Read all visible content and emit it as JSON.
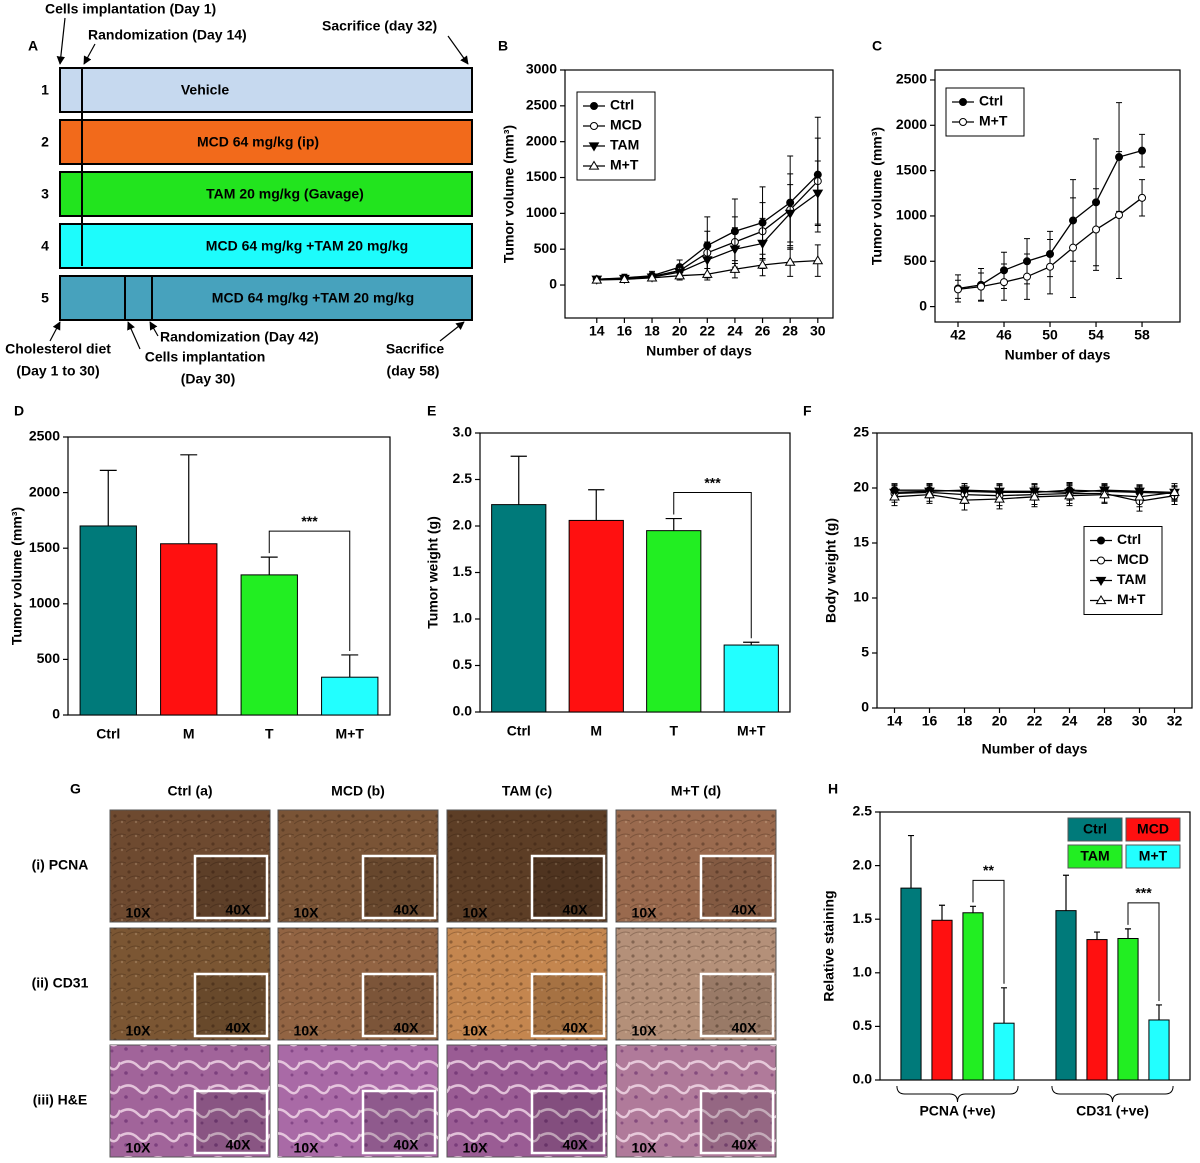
{
  "panel_a": {
    "letter": "A",
    "top_annotations": [
      "Cells implantation (Day 1)",
      "Randomization (Day 14)",
      "Sacrifice (day 32)"
    ],
    "rows": [
      {
        "number": "1",
        "label": "Vehicle",
        "color": "#c6d9ef"
      },
      {
        "number": "2",
        "label": "MCD 64 mg/kg (ip)",
        "color": "#f26a1b"
      },
      {
        "number": "3",
        "label": "TAM 20 mg/kg (Gavage)",
        "color": "#22e41e"
      },
      {
        "number": "4",
        "label": "MCD 64 mg/kg +TAM 20 mg/kg",
        "color": "#1dfcfc"
      },
      {
        "number": "5",
        "label": "MCD 64 mg/kg +TAM 20 mg/kg",
        "color": "#47a2bd"
      }
    ],
    "bottom_annotations": [
      [
        "Cholesterol diet",
        "(Day 1 to 30)"
      ],
      [
        "Randomization (Day 42)"
      ],
      [
        "Cells implantation",
        "(Day 30)"
      ],
      [
        "Sacrifice",
        "(day 58)"
      ]
    ]
  },
  "chart_data": [
    {
      "panel": "B",
      "type": "line",
      "y_label": "Tumor volume (mm³)",
      "x_label": "Number of days",
      "x": [
        14,
        16,
        18,
        20,
        22,
        24,
        26,
        28,
        30
      ],
      "xlim": [
        11.7,
        31.1
      ],
      "xticks": [
        14,
        16,
        18,
        20,
        22,
        24,
        26,
        28,
        30
      ],
      "ylim": [
        -460,
        3000
      ],
      "yticks": [
        0,
        500,
        1000,
        1500,
        2000,
        2500,
        3000
      ],
      "legend": "upper left",
      "series": [
        {
          "name": "Ctrl",
          "marker": "circle",
          "color": "#000000",
          "values": [
            80,
            100,
            130,
            250,
            550,
            750,
            870,
            1150,
            1540
          ],
          "errors": [
            20,
            50,
            60,
            100,
            400,
            450,
            500,
            650,
            800
          ]
        },
        {
          "name": "MCD",
          "marker": "circle",
          "color": "#ffffff",
          "values": [
            80,
            90,
            120,
            200,
            450,
            600,
            750,
            1050,
            1450
          ],
          "errors": [
            20,
            40,
            50,
            80,
            300,
            350,
            400,
            500,
            600
          ]
        },
        {
          "name": "TAM",
          "marker": "triangle-down",
          "color": "#000000",
          "values": [
            80,
            90,
            110,
            180,
            350,
            500,
            580,
            1000,
            1280
          ],
          "errors": [
            20,
            40,
            50,
            80,
            250,
            300,
            350,
            400,
            450
          ]
        },
        {
          "name": "M+T",
          "marker": "triangle-up",
          "color": "#ffffff",
          "values": [
            70,
            80,
            100,
            130,
            150,
            220,
            280,
            320,
            340
          ],
          "errors": [
            20,
            30,
            40,
            60,
            80,
            120,
            150,
            200,
            220
          ]
        }
      ]
    },
    {
      "panel": "C",
      "type": "line",
      "y_label": "Tumor volume (mm³)",
      "x_label": "Number of days",
      "x": [
        42,
        44,
        46,
        48,
        50,
        52,
        54,
        56,
        58
      ],
      "xlim": [
        40,
        61.3
      ],
      "xticks": [
        42,
        46,
        50,
        54,
        58
      ],
      "ylim": [
        -170,
        2610
      ],
      "yticks": [
        0,
        500,
        1000,
        1500,
        2000,
        2500
      ],
      "legend": "upper left",
      "series": [
        {
          "name": "Ctrl",
          "marker": "circle",
          "color": "#000000",
          "values": [
            200,
            240,
            400,
            500,
            580,
            950,
            1150,
            1650,
            1720
          ],
          "errors": [
            150,
            180,
            200,
            250,
            250,
            450,
            700,
            600,
            180
          ]
        },
        {
          "name": "M+T",
          "marker": "circle",
          "color": "#ffffff",
          "values": [
            190,
            220,
            270,
            330,
            440,
            650,
            850,
            1010,
            1200
          ],
          "errors": [
            100,
            150,
            200,
            250,
            300,
            550,
            450,
            700,
            200
          ]
        }
      ]
    },
    {
      "panel": "D",
      "type": "bar",
      "y_label": "Tumor volume (mm³)",
      "categories": [
        "Ctrl",
        "M",
        "T",
        "M+T"
      ],
      "values": [
        1700,
        1540,
        1260,
        340
      ],
      "errors": [
        500,
        800,
        160,
        200
      ],
      "colors": [
        "#007a7a",
        "#ff1010",
        "#22ee22",
        "#22ffff"
      ],
      "ylim": [
        0,
        2500
      ],
      "yticks": [
        0,
        500,
        1000,
        1500,
        2000,
        2500
      ],
      "significance": "***"
    },
    {
      "panel": "E",
      "type": "bar",
      "y_label": "Tumor weight (g)",
      "categories": [
        "Ctrl",
        "M",
        "T",
        "M+T"
      ],
      "values": [
        2.23,
        2.06,
        1.95,
        0.72
      ],
      "errors": [
        0.52,
        0.33,
        0.13,
        0.03
      ],
      "colors": [
        "#007a7a",
        "#ff1010",
        "#22ee22",
        "#22ffff"
      ],
      "ylim": [
        0,
        3
      ],
      "yticks": [
        {
          "value": 0,
          "label": "0.0"
        },
        0.5,
        {
          "value": 1,
          "label": "1.0"
        },
        1.5,
        {
          "value": 2,
          "label": "2.0"
        },
        2.5,
        {
          "value": 3,
          "label": "3.0"
        }
      ],
      "significance": "***"
    },
    {
      "panel": "F",
      "type": "line",
      "y_label": "Body weight (g)",
      "x_label": "Number of days",
      "categories": [
        "14",
        "16",
        "18",
        "20",
        "22",
        "24",
        "28",
        "30",
        "32"
      ],
      "ylim": [
        0,
        25
      ],
      "yticks": [
        0,
        5,
        10,
        15,
        20,
        25
      ],
      "legend": "center right",
      "series": [
        {
          "name": "Ctrl",
          "marker": "circle",
          "color": "#000000",
          "values": [
            19.8,
            19.8,
            19.7,
            19.6,
            19.6,
            19.8,
            19.7,
            19.6,
            19.5
          ],
          "errors": [
            0.6,
            0.6,
            0.7,
            0.7,
            0.7,
            0.7,
            0.6,
            0.6,
            0.6
          ]
        },
        {
          "name": "MCD",
          "marker": "circle",
          "color": "#ffffff",
          "values": [
            19.5,
            19.6,
            19.4,
            19.3,
            19.4,
            19.5,
            19.5,
            18.8,
            19.3
          ],
          "errors": [
            0.8,
            0.8,
            0.8,
            0.9,
            0.9,
            0.9,
            0.8,
            0.9,
            0.8
          ]
        },
        {
          "name": "TAM",
          "marker": "triangle-down",
          "color": "#000000",
          "values": [
            19.6,
            19.7,
            19.8,
            19.7,
            19.7,
            19.6,
            19.8,
            19.7,
            19.6
          ],
          "errors": [
            0.6,
            0.6,
            0.6,
            0.7,
            0.7,
            0.7,
            0.6,
            0.6,
            0.6
          ]
        },
        {
          "name": "M+T",
          "marker": "triangle-up",
          "color": "#ffffff",
          "values": [
            19.2,
            19.4,
            18.9,
            19.0,
            19.2,
            19.3,
            19.4,
            19.2,
            19.6
          ],
          "errors": [
            0.8,
            0.8,
            0.9,
            0.9,
            0.9,
            0.9,
            0.8,
            0.9,
            0.8
          ]
        }
      ]
    },
    {
      "panel": "H",
      "type": "bar",
      "y_label": "Relative staining",
      "categories": [
        "PCNA (+ve)",
        "CD31 (+ve)"
      ],
      "ylim": [
        0,
        2.5
      ],
      "yticks": [
        {
          "value": 0,
          "label": "0.0"
        },
        0.5,
        {
          "value": 1,
          "label": "1.0"
        },
        1.5,
        {
          "value": 2,
          "label": "2.0"
        },
        2.5
      ],
      "legend": "upper right",
      "series": [
        {
          "name": "Ctrl",
          "color": "#007a7a",
          "values": [
            1.79,
            1.58
          ],
          "errors": [
            0.49,
            0.33
          ]
        },
        {
          "name": "MCD",
          "color": "#ff1010",
          "values": [
            1.49,
            1.31
          ],
          "errors": [
            0.14,
            0.07
          ]
        },
        {
          "name": "TAM",
          "color": "#22ee22",
          "values": [
            1.56,
            1.32
          ],
          "errors": [
            0.06,
            0.09
          ]
        },
        {
          "name": "M+T",
          "color": "#22ffff",
          "values": [
            0.53,
            0.56
          ],
          "errors": [
            0.33,
            0.14
          ]
        }
      ],
      "significance": [
        "**",
        "***"
      ]
    }
  ],
  "panel_g": {
    "letter": "G",
    "columns": [
      "Ctrl (a)",
      "MCD (b)",
      "TAM (c)",
      "M+T (d)"
    ],
    "rows": [
      "(i) PCNA",
      "(ii) CD31",
      "(iii) H&E"
    ],
    "magnifications": [
      "10X",
      "40X"
    ]
  }
}
